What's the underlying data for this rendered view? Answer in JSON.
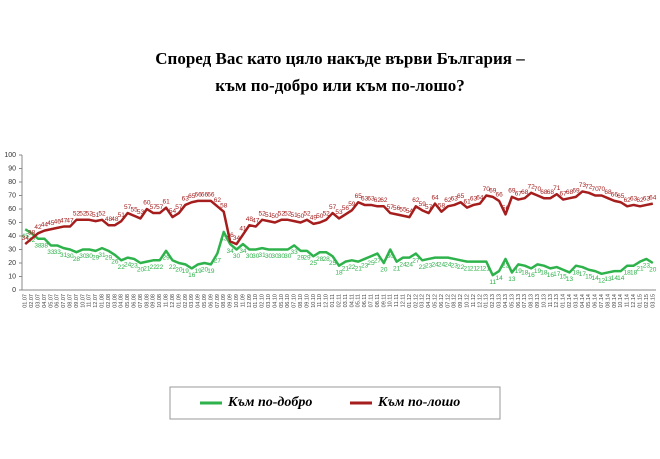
{
  "chart_data": {
    "type": "line",
    "title": [
      "Според  Вас като цяло накъде върви България –",
      "към по-добро  или към по-лошо?"
    ],
    "categories": [
      "01.07",
      "02.07",
      "03.07",
      "04.07",
      "05.07",
      "06.07",
      "07.07",
      "08.07",
      "09.07",
      "10.07",
      "11.07",
      "12.07",
      "01.08",
      "02.08",
      "03.08",
      "04.08",
      "05.08",
      "06.08",
      "07.08",
      "08.08",
      "09.08",
      "10.08",
      "11.08",
      "12.08",
      "01.09",
      "02.09",
      "03.09",
      "04.09",
      "05.09",
      "06.09",
      "07.09",
      "08.09",
      "09.09",
      "10.09",
      "11.09",
      "12.09",
      "01.10",
      "02.10",
      "03.10",
      "04.10",
      "05.10",
      "06.10",
      "07.10",
      "08.10",
      "09.10",
      "10.10",
      "11.10",
      "12.10",
      "01.11",
      "02.11",
      "03.11",
      "04.11",
      "05.11",
      "06.11",
      "07.11",
      "08.11",
      "09.11",
      "10.11",
      "11.11",
      "12.11",
      "01.12",
      "02.12",
      "03.12",
      "04.12",
      "05.12",
      "06.12",
      "07.12",
      "08.12",
      "09.12",
      "10.12",
      "11.12",
      "12.12",
      "01.13",
      "02.13",
      "03.13",
      "04.13",
      "05.13",
      "06.13",
      "07.13",
      "08.13",
      "09.13",
      "10.13",
      "11.13",
      "12.13",
      "01.14",
      "02.14",
      "03.14",
      "04.14",
      "05.14",
      "06.14",
      "07.14",
      "08.14",
      "09.14",
      "10.14",
      "11.14",
      "12.14",
      "01.15",
      "02.15",
      "03.15"
    ],
    "series": [
      {
        "name": "Към по-добро",
        "color": "#2eb24b",
        "values": [
          45,
          42,
          38,
          38,
          33,
          33,
          31,
          30,
          28,
          30,
          30,
          29,
          31,
          29,
          26,
          22,
          24,
          23,
          20,
          21,
          22,
          22,
          29,
          22,
          20,
          19,
          16,
          19,
          20,
          19,
          27,
          43,
          34,
          30,
          34,
          30,
          30,
          31,
          30,
          30,
          30,
          30,
          33,
          29,
          29,
          25,
          28,
          28,
          25,
          18,
          21,
          22,
          21,
          23,
          25,
          27,
          20,
          30,
          21,
          24,
          24,
          27,
          22,
          23,
          24,
          24,
          24,
          23,
          22,
          21,
          21,
          21,
          21,
          11,
          14,
          23,
          13,
          19,
          18,
          16,
          19,
          18,
          16,
          17,
          15,
          13,
          18,
          17,
          15,
          14,
          12,
          13,
          14,
          14,
          18,
          18,
          21,
          23,
          20
        ]
      },
      {
        "name": "Към по-лошо",
        "color": "#a51d1d",
        "values": [
          34,
          38,
          42,
          44,
          45,
          46,
          47,
          47,
          52,
          52,
          52,
          51,
          52,
          48,
          48,
          51,
          57,
          55,
          53,
          60,
          57,
          57,
          61,
          54,
          57,
          63,
          65,
          66,
          66,
          66,
          62,
          58,
          36,
          34,
          41,
          48,
          47,
          52,
          51,
          50,
          52,
          52,
          51,
          50,
          52,
          49,
          50,
          52,
          57,
          53,
          56,
          59,
          65,
          63,
          63,
          62,
          62,
          57,
          56,
          55,
          54,
          62,
          59,
          57,
          64,
          58,
          62,
          63,
          65,
          61,
          63,
          64,
          70,
          69,
          66,
          56,
          69,
          67,
          68,
          72,
          70,
          68,
          68,
          71,
          67,
          68,
          69,
          73,
          72,
          70,
          70,
          68,
          66,
          65,
          62,
          63,
          62,
          63,
          64
        ]
      }
    ],
    "ylim": [
      0,
      100
    ],
    "yticks": [
      0,
      10,
      20,
      30,
      40,
      50,
      60,
      70,
      80,
      90,
      100
    ],
    "legend": "bottom"
  }
}
